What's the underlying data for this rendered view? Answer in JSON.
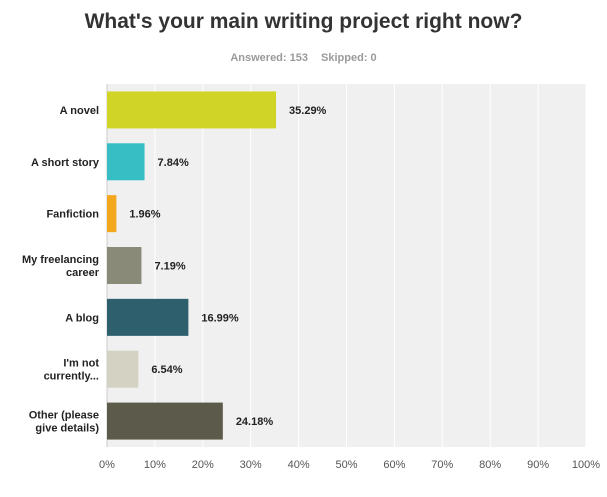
{
  "header": {
    "title": "What's your main writing project right now?",
    "answered": "Answered: 153",
    "skipped": "Skipped: 0"
  },
  "chart_data": {
    "type": "bar",
    "orientation": "horizontal",
    "title": "What's your main writing project right now?",
    "categories": [
      [
        "A novel"
      ],
      [
        "A short story"
      ],
      [
        "Fanfiction"
      ],
      [
        "My freelancing",
        "career"
      ],
      [
        "A blog"
      ],
      [
        "I'm not",
        "currently..."
      ],
      [
        "Other (please",
        "give details)"
      ]
    ],
    "values": [
      35.29,
      7.84,
      1.96,
      7.19,
      16.99,
      6.54,
      24.18
    ],
    "value_labels": [
      "35.29%",
      "7.84%",
      "1.96%",
      "7.19%",
      "16.99%",
      "6.54%",
      "24.18%"
    ],
    "colors": [
      "#cfd426",
      "#37bec4",
      "#f2a71c",
      "#8a8a78",
      "#2e5f6c",
      "#d3d2c3",
      "#5c5a4a"
    ],
    "xlim": [
      0,
      100
    ],
    "xticks": [
      "0%",
      "10%",
      "20%",
      "30%",
      "40%",
      "50%",
      "60%",
      "70%",
      "80%",
      "90%",
      "100%"
    ],
    "grid": true,
    "xlabel": "",
    "ylabel": ""
  }
}
